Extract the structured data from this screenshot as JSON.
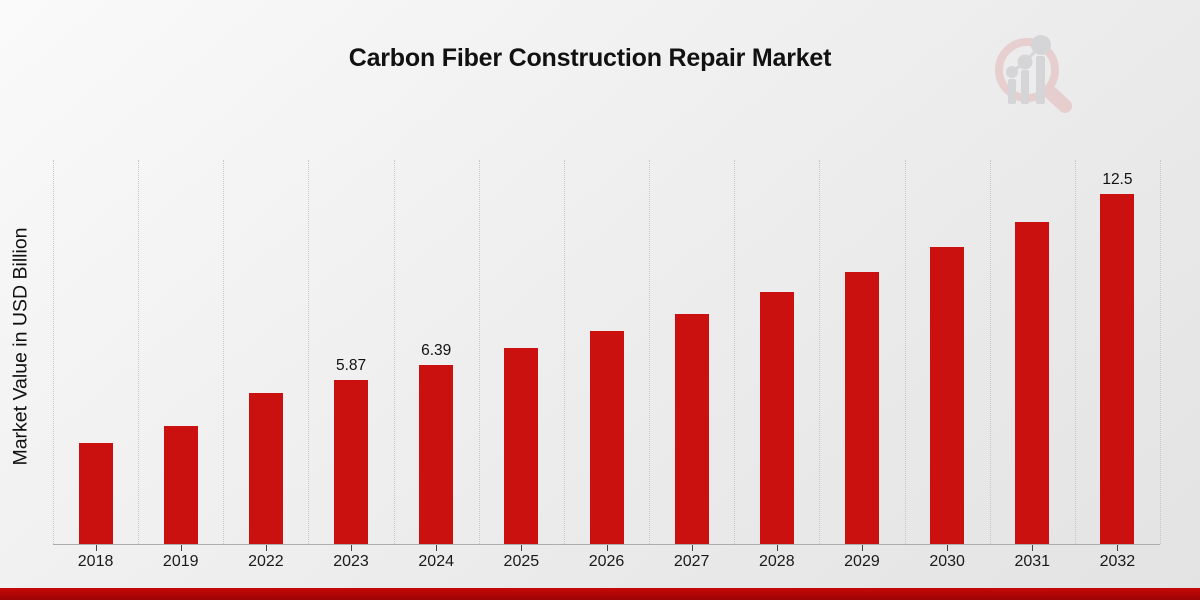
{
  "page": {
    "title": "Carbon Fiber Construction Repair Market",
    "y_axis_label": "Market Value in USD Billion"
  },
  "colors": {
    "bar": "#cb1010",
    "footer_top": "#c50909",
    "footer_bottom": "#9c0303",
    "gridline": "#c7c7c7",
    "axis_line": "#adadad",
    "tick": "#444444",
    "logo_ring": "#e7caca",
    "logo_gray": "#d2d2d4"
  },
  "chart_data": {
    "type": "bar",
    "title": "Carbon Fiber Construction Repair Market",
    "xlabel": "",
    "ylabel": "Market Value in USD Billion",
    "categories": [
      "2018",
      "2019",
      "2022",
      "2023",
      "2024",
      "2025",
      "2026",
      "2027",
      "2028",
      "2029",
      "2030",
      "2031",
      "2032"
    ],
    "values": [
      3.6,
      4.2,
      5.4,
      5.87,
      6.39,
      7.0,
      7.6,
      8.2,
      9.0,
      9.7,
      10.6,
      11.5,
      12.5
    ],
    "data_labels": [
      "",
      "",
      "",
      "5.87",
      "6.39",
      "",
      "",
      "",
      "",
      "",
      "",
      "",
      "12.5"
    ],
    "ylim": [
      0,
      13.7
    ],
    "grid": "vertical dotted lines at category boundaries",
    "legend": "none",
    "bar_color": "#cb1010"
  }
}
